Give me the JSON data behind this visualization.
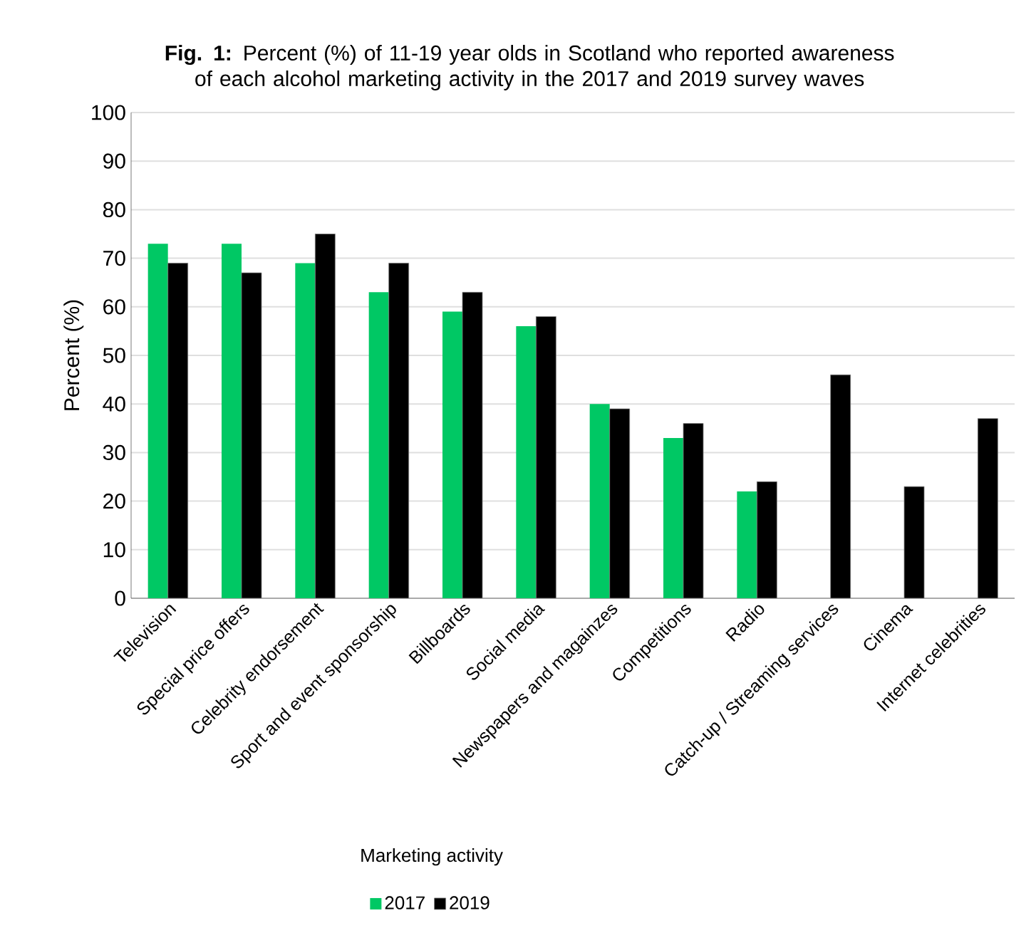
{
  "chart_data": {
    "type": "bar",
    "title": "**Fig. 1:** Percent (%) of 11-19 year olds in Scotland who reported awareness of each alcohol marketing activity in the 2017 and 2019 survey waves",
    "xlabel": "Marketing activity",
    "ylabel": "Percent (%)",
    "categories": [
      "Television",
      "Special price offers",
      "Celebrity endorsement",
      "Sport and event sponsorship",
      "Billboards",
      "Social media",
      "Newspapers and magainzes",
      "Competitions",
      "Radio",
      "Catch-up / Streaming services",
      "Cinema",
      "Internet celebrities"
    ],
    "series": [
      {
        "name": "2017",
        "color": "#00c864",
        "values": [
          73,
          73,
          69,
          63,
          59,
          56,
          40,
          33,
          22,
          null,
          null,
          null
        ]
      },
      {
        "name": "2019",
        "color": "#000000",
        "values": [
          69,
          67,
          75,
          69,
          63,
          58,
          39,
          36,
          24,
          46,
          23,
          37
        ]
      }
    ],
    "ylim": [
      0,
      100
    ],
    "yticks": [
      0,
      10,
      20,
      30,
      40,
      50,
      60,
      70,
      80,
      90,
      100
    ],
    "grid": "y",
    "legend": "bottom"
  }
}
